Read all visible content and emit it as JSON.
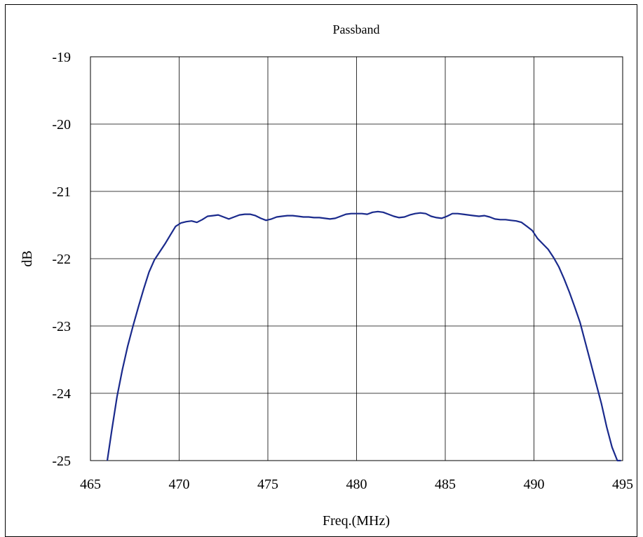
{
  "chart_data": {
    "type": "line",
    "title": "Passband",
    "xlabel": "Freq.(MHz)",
    "ylabel": "dB",
    "xlim": [
      465,
      495
    ],
    "ylim": [
      -25,
      -19
    ],
    "xticks": [
      "465",
      "470",
      "475",
      "480",
      "485",
      "490",
      "495"
    ],
    "yticks": [
      "-19",
      "-20",
      "-21",
      "-22",
      "-23",
      "-24",
      "-25"
    ],
    "grid": true,
    "line_color": "#1a2a8c",
    "series": [
      {
        "x": [
          465.95,
          466.2,
          466.5,
          466.8,
          467.1,
          467.4,
          467.7,
          468.0,
          468.3,
          468.6,
          468.9,
          469.2,
          469.5,
          469.8,
          470.1,
          470.4,
          470.7,
          471.0,
          471.3,
          471.6,
          471.9,
          472.2,
          472.5,
          472.8,
          473.1,
          473.4,
          473.7,
          474.0,
          474.3,
          474.6,
          474.9,
          475.2,
          475.5,
          475.8,
          476.1,
          476.4,
          476.7,
          477.0,
          477.3,
          477.6,
          477.9,
          478.2,
          478.5,
          478.8,
          479.1,
          479.4,
          479.7,
          480.0,
          480.3,
          480.6,
          480.9,
          481.2,
          481.5,
          481.8,
          482.1,
          482.4,
          482.7,
          483.0,
          483.3,
          483.6,
          483.9,
          484.2,
          484.5,
          484.8,
          485.1,
          485.4,
          485.7,
          486.0,
          486.3,
          486.6,
          486.9,
          487.2,
          487.5,
          487.8,
          488.1,
          488.4,
          488.7,
          489.0,
          489.3,
          489.6,
          489.9,
          490.2,
          490.5,
          490.8,
          491.1,
          491.4,
          491.7,
          492.0,
          492.3,
          492.6,
          492.9,
          493.2,
          493.5,
          493.8,
          494.1,
          494.4,
          494.7,
          494.9
        ],
        "y": [
          -25.0,
          -24.55,
          -24.05,
          -23.65,
          -23.3,
          -23.0,
          -22.72,
          -22.45,
          -22.2,
          -22.02,
          -21.9,
          -21.78,
          -21.65,
          -21.52,
          -21.47,
          -21.45,
          -21.44,
          -21.46,
          -21.42,
          -21.37,
          -21.36,
          -21.35,
          -21.38,
          -21.41,
          -21.38,
          -21.35,
          -21.34,
          -21.34,
          -21.36,
          -21.4,
          -21.43,
          -21.41,
          -21.38,
          -21.37,
          -21.36,
          -21.36,
          -21.37,
          -21.38,
          -21.38,
          -21.39,
          -21.39,
          -21.4,
          -21.41,
          -21.4,
          -21.37,
          -21.34,
          -21.33,
          -21.33,
          -21.33,
          -21.34,
          -21.31,
          -21.3,
          -21.31,
          -21.34,
          -21.37,
          -21.39,
          -21.38,
          -21.35,
          -21.33,
          -21.32,
          -21.33,
          -21.37,
          -21.39,
          -21.4,
          -21.37,
          -21.33,
          -21.33,
          -21.34,
          -21.35,
          -21.36,
          -21.37,
          -21.36,
          -21.38,
          -21.41,
          -21.42,
          -21.42,
          -21.43,
          -21.44,
          -21.46,
          -21.52,
          -21.58,
          -21.7,
          -21.78,
          -21.86,
          -21.98,
          -22.12,
          -22.3,
          -22.5,
          -22.72,
          -22.95,
          -23.25,
          -23.55,
          -23.85,
          -24.15,
          -24.5,
          -24.8,
          -25.0,
          -25.0
        ]
      }
    ]
  }
}
